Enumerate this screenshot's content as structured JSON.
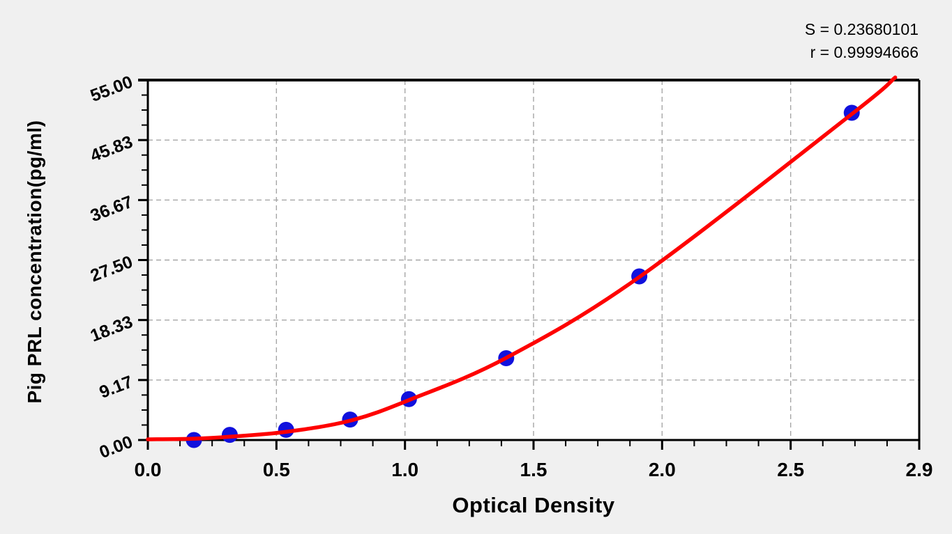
{
  "stats": {
    "s": "S = 0.23680101",
    "r": "r = 0.99994666"
  },
  "chart_data": {
    "type": "scatter",
    "title": "",
    "xlabel": "Optical Density",
    "ylabel": "Pig PRL concentration(pg/ml)",
    "x_range": [
      0.0,
      2.9
    ],
    "y_range": [
      0.0,
      55.0
    ],
    "x_tick_labels": [
      "0.0",
      "0.5",
      "1.0",
      "1.5",
      "2.0",
      "2.5",
      "2.9"
    ],
    "y_tick_labels": [
      "0.00",
      "9.17",
      "18.33",
      "27.50",
      "36.67",
      "45.83",
      "55.00"
    ],
    "minor_ticks_per_interval": 3,
    "grid": "dashed major gridlines, interior only",
    "legend": "none",
    "annotations": [
      "S = 0.23680101",
      "r = 0.99994666"
    ],
    "series": [
      {
        "name": "standard points",
        "marker": "filled circle",
        "points": [
          {
            "x": 0.18,
            "y": 0.0
          },
          {
            "x": 0.32,
            "y": 0.78
          },
          {
            "x": 0.54,
            "y": 1.56
          },
          {
            "x": 0.79,
            "y": 3.12
          },
          {
            "x": 1.02,
            "y": 6.25
          },
          {
            "x": 1.4,
            "y": 12.5
          },
          {
            "x": 1.92,
            "y": 25.0
          },
          {
            "x": 2.75,
            "y": 50.0
          }
        ]
      },
      {
        "name": "fitted curve",
        "marker": "none",
        "points": [
          {
            "x": 0.0,
            "y": 0.1
          },
          {
            "x": 0.18,
            "y": 0.2
          },
          {
            "x": 0.32,
            "y": 0.5
          },
          {
            "x": 0.54,
            "y": 1.25
          },
          {
            "x": 0.79,
            "y": 2.95
          },
          {
            "x": 1.02,
            "y": 6.1
          },
          {
            "x": 1.4,
            "y": 12.55
          },
          {
            "x": 1.92,
            "y": 24.9
          },
          {
            "x": 2.75,
            "y": 49.8
          },
          {
            "x": 2.92,
            "y": 55.4
          }
        ]
      }
    ],
    "colors": {
      "point": "#1111dd",
      "curve": "#fe0000",
      "axis": "#000000",
      "grid": "#a6a6a6",
      "plot_bg": "#ffffff",
      "page_bg": "#f0f0f0"
    }
  }
}
